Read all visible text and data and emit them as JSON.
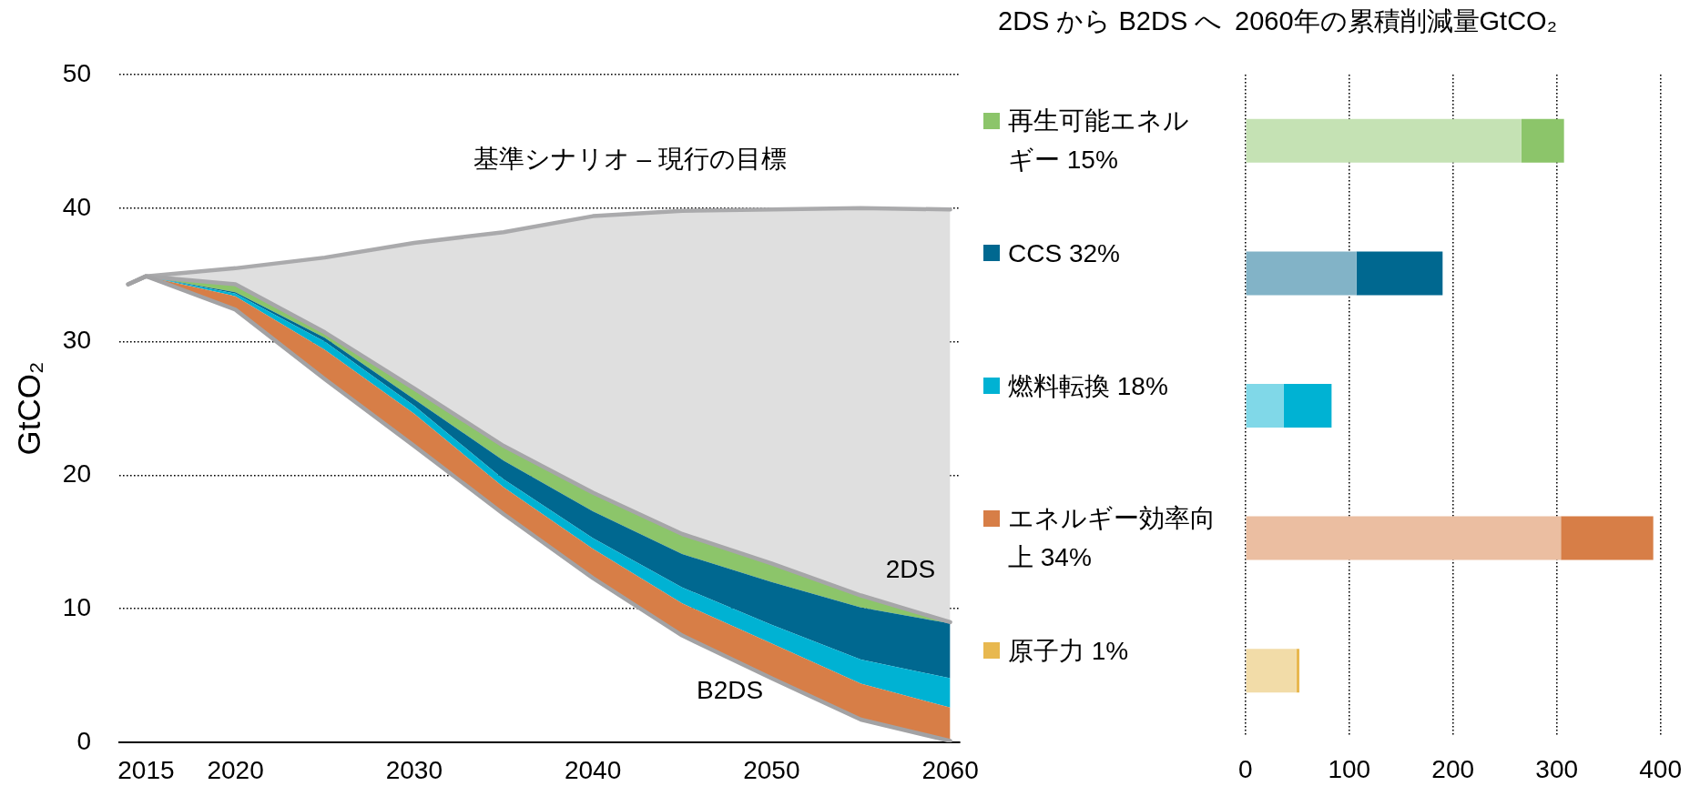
{
  "chart_data": [
    {
      "type": "area",
      "x": [
        2015,
        2020,
        2025,
        2030,
        2035,
        2040,
        2045,
        2050,
        2055,
        2060
      ],
      "ylabel": "GtCO₂",
      "xlim": [
        2013.5,
        2060.5
      ],
      "xticks": [
        2015,
        2020,
        2030,
        2040,
        2050,
        2060
      ],
      "ylim": [
        0,
        50
      ],
      "yticks": [
        0,
        10,
        20,
        30,
        40,
        50
      ],
      "grid": "y",
      "series": [
        {
          "type": "line",
          "name": "B2DS",
          "color": "#a2a2a4",
          "x": [
            2014,
            2015,
            2020,
            2025,
            2030,
            2035,
            2040,
            2045,
            2050,
            2055,
            2060
          ],
          "values": [
            34.3,
            34.9,
            32.4,
            27.2,
            22.2,
            17.1,
            12.3,
            8.0,
            4.8,
            1.7,
            0.1
          ]
        },
        {
          "type": "area",
          "color": "#d77e47",
          "values": [
            34.9,
            33.4,
            29.4,
            24.6,
            19.1,
            14.5,
            10.4,
            7.4,
            4.4,
            2.6
          ]
        },
        {
          "type": "area",
          "color": "#00b2d3",
          "values": [
            34.9,
            33.6,
            30.0,
            25.2,
            19.7,
            15.3,
            11.6,
            8.8,
            6.2,
            4.8
          ]
        },
        {
          "type": "area",
          "color": "#006890",
          "values": [
            34.9,
            33.7,
            30.3,
            25.7,
            21.1,
            17.3,
            14.1,
            12.0,
            10.1,
            8.9
          ]
        },
        {
          "type": "area",
          "color": "#8cc56a",
          "values": [
            34.9,
            34.3,
            30.7,
            26.5,
            22.2,
            18.7,
            15.6,
            13.4,
            11.0,
            9.0
          ]
        },
        {
          "type": "area",
          "color": "#dfdfdf",
          "values": [
            34.9,
            35.5,
            36.3,
            37.4,
            38.2,
            39.4,
            39.8,
            39.9,
            40.0,
            39.9
          ]
        },
        {
          "type": "line",
          "name": "2DS",
          "color": "#a6a6a8",
          "x": [
            2014,
            2015,
            2020,
            2025,
            2030,
            2035,
            2040,
            2045,
            2050,
            2055,
            2060
          ],
          "values": [
            34.3,
            34.9,
            34.3,
            30.7,
            26.5,
            22.2,
            18.7,
            15.6,
            13.4,
            11.0,
            9.0
          ]
        },
        {
          "type": "line",
          "name": "基準シナリオ – 現行の目標",
          "color": "#aaaaac",
          "x": [
            2014,
            2015,
            2020,
            2025,
            2030,
            2035,
            2040,
            2045,
            2050,
            2055,
            2060
          ],
          "values": [
            34.3,
            34.9,
            35.5,
            36.3,
            37.4,
            38.2,
            39.4,
            39.8,
            39.9,
            40.0,
            39.9
          ]
        }
      ]
    },
    {
      "type": "bar",
      "orientation": "horizontal",
      "stacked": true,
      "title": "2DS から B2DS へ",
      "subtitle": "2060年の累積削減量GtCO₂",
      "categories": [
        "再生可能エネルギー 15%",
        "CCS 32%",
        "燃料転換 18%",
        "エネルギー効率向上 34%",
        "原子力 1%"
      ],
      "series": [
        {
          "colors": [
            "#c5e2b4",
            "#82b3c7",
            "#80d8e8",
            "#ebbea1",
            "#f2dca8"
          ],
          "values": [
            266,
            107,
            37,
            304,
            49
          ]
        },
        {
          "colors": [
            "#8cc56a",
            "#006890",
            "#00b2d3",
            "#d77e47",
            "#e8b84f"
          ],
          "values": [
            41,
            83,
            46,
            89,
            3
          ]
        }
      ],
      "xlim": [
        0,
        400
      ],
      "xticks": [
        0,
        100,
        200,
        300,
        400
      ],
      "grid": "x"
    }
  ]
}
